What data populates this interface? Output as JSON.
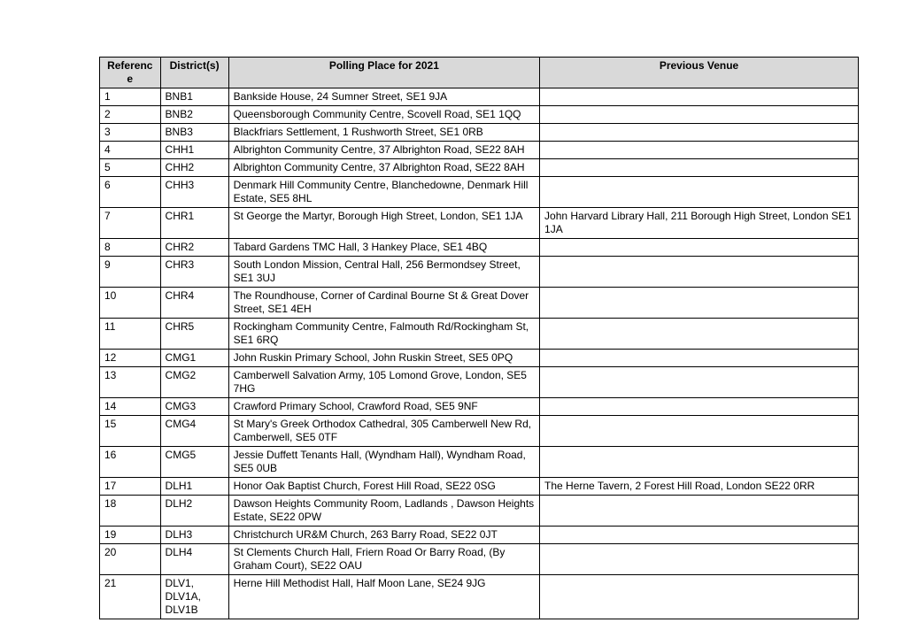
{
  "table": {
    "columns": [
      "Reference",
      "District(s)",
      "Polling Place for 2021",
      "Previous Venue"
    ],
    "rows": [
      [
        "1",
        "BNB1",
        "Bankside House, 24 Sumner Street, SE1 9JA",
        ""
      ],
      [
        "2",
        "BNB2",
        "Queensborough Community Centre, Scovell Road, SE1 1QQ",
        ""
      ],
      [
        "3",
        "BNB3",
        "Blackfriars Settlement, 1 Rushworth Street, SE1 0RB",
        ""
      ],
      [
        "4",
        "CHH1",
        "Albrighton Community Centre, 37 Albrighton Road, SE22 8AH",
        ""
      ],
      [
        "5",
        "CHH2",
        "Albrighton Community Centre, 37 Albrighton Road, SE22 8AH",
        ""
      ],
      [
        "6",
        "CHH3",
        "Denmark Hill Community Centre, Blanchedowne, Denmark Hill Estate, SE5 8HL",
        ""
      ],
      [
        "7",
        "CHR1",
        "St George the Martyr, Borough High Street, London, SE1 1JA",
        "John Harvard Library Hall, 211 Borough High Street, London SE1 1JA"
      ],
      [
        "8",
        "CHR2",
        "Tabard Gardens TMC Hall, 3 Hankey Place, SE1 4BQ",
        ""
      ],
      [
        "9",
        "CHR3",
        "South London Mission, Central Hall, 256 Bermondsey Street, SE1 3UJ",
        ""
      ],
      [
        "10",
        "CHR4",
        "The Roundhouse, Corner of Cardinal Bourne St & Great Dover Street, SE1 4EH",
        ""
      ],
      [
        "11",
        "CHR5",
        "Rockingham Community Centre, Falmouth Rd/Rockingham St, SE1 6RQ",
        ""
      ],
      [
        "12",
        "CMG1",
        "John Ruskin Primary School, John Ruskin Street, SE5 0PQ",
        ""
      ],
      [
        "13",
        "CMG2",
        "Camberwell Salvation Army, 105 Lomond Grove, London, SE5 7HG",
        ""
      ],
      [
        "14",
        "CMG3",
        "Crawford Primary School, Crawford Road, SE5 9NF",
        ""
      ],
      [
        "15",
        "CMG4",
        "St Mary's Greek Orthodox Cathedral, 305 Camberwell New Rd, Camberwell, SE5 0TF",
        ""
      ],
      [
        "16",
        "CMG5",
        "Jessie Duffett Tenants Hall, (Wyndham Hall), Wyndham Road, SE5 0UB",
        ""
      ],
      [
        "17",
        "DLH1",
        "Honor Oak Baptist Church, Forest Hill Road, SE22 0SG",
        "The Herne Tavern, 2 Forest Hill Road, London SE22 0RR"
      ],
      [
        "18",
        "DLH2",
        "Dawson Heights Community Room, Ladlands , Dawson Heights Estate, SE22 0PW",
        ""
      ],
      [
        "19",
        "DLH3",
        "Christchurch UR&M Church, 263 Barry Road, SE22 0JT",
        ""
      ],
      [
        "20",
        "DLH4",
        "St Clements Church Hall, Friern Road Or Barry Road, (By Graham Court), SE22 OAU",
        ""
      ],
      [
        "21",
        "DLV1, DLV1A, DLV1B",
        "Herne Hill Methodist Hall, Half Moon Lane, SE24 9JG",
        ""
      ]
    ]
  }
}
